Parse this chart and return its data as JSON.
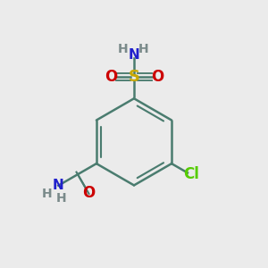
{
  "bg_color": "#ebebeb",
  "bond_color": "#4a7c6f",
  "bond_width": 1.8,
  "colors": {
    "S": "#c8a800",
    "O": "#cc0000",
    "N": "#2020cc",
    "Cl": "#55cc00",
    "H": "#7a8a8a",
    "C": "#4a7c6f"
  }
}
